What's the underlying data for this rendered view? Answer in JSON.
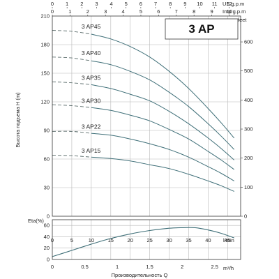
{
  "chart_data": [
    {
      "type": "line",
      "model": "3 AP",
      "ylabel": "Высота подъема H (m)",
      "right_axis_label": "feet",
      "top_axes": [
        {
          "label": "US g.p.m",
          "ticks": [
            "0",
            "1",
            "2",
            "3",
            "4",
            "5",
            "6",
            "7",
            "8",
            "9",
            "10",
            "11",
            "12"
          ]
        },
        {
          "label": "Imp g.p.m",
          "ticks": [
            "0",
            "1",
            "2",
            "3",
            "4",
            "5",
            "6",
            "7",
            "8",
            "9",
            "10"
          ]
        }
      ],
      "xlim": [
        0,
        2.9
      ],
      "ylim": [
        0,
        210
      ],
      "y_ticks": [
        "0",
        "30",
        "60",
        "90",
        "120",
        "150",
        "180",
        "210"
      ],
      "feet_ticks": [
        "0",
        "100",
        "200",
        "300",
        "400",
        "500",
        "600"
      ],
      "series": [
        {
          "name": "3 AP45",
          "x": [
            0,
            0.3,
            0.6,
            0.9,
            1.2,
            1.5,
            1.8,
            2.1,
            2.4,
            2.6,
            2.8
          ],
          "y": [
            195,
            194,
            191,
            186,
            178,
            167,
            152,
            134,
            113,
            98,
            82
          ]
        },
        {
          "name": "3 AP40",
          "x": [
            0,
            0.3,
            0.6,
            0.9,
            1.2,
            1.5,
            1.8,
            2.1,
            2.4,
            2.6,
            2.8
          ],
          "y": [
            167,
            166,
            163,
            159,
            152,
            143,
            130,
            115,
            97,
            84,
            70
          ]
        },
        {
          "name": "3 AP35",
          "x": [
            0,
            0.3,
            0.6,
            0.9,
            1.2,
            1.5,
            1.8,
            2.1,
            2.4,
            2.6,
            2.8
          ],
          "y": [
            141,
            140,
            138,
            134,
            128,
            121,
            110,
            97,
            82,
            71,
            59
          ]
        },
        {
          "name": "3 AP30",
          "x": [
            0,
            0.3,
            0.6,
            0.9,
            1.2,
            1.5,
            1.8,
            2.1,
            2.4,
            2.6,
            2.8
          ],
          "y": [
            117,
            116,
            114,
            111,
            106,
            100,
            91,
            81,
            68,
            59,
            49
          ]
        },
        {
          "name": "3 AP22",
          "x": [
            0,
            0.3,
            0.6,
            0.9,
            1.2,
            1.5,
            1.8,
            2.1,
            2.4,
            2.6,
            2.8
          ],
          "y": [
            89,
            89,
            87,
            85,
            81,
            76,
            70,
            62,
            52,
            45,
            37
          ]
        },
        {
          "name": "3 AP15",
          "x": [
            0,
            0.3,
            0.6,
            0.9,
            1.2,
            1.5,
            1.8,
            2.1,
            2.4,
            2.6,
            2.8
          ],
          "y": [
            64,
            63.5,
            62,
            60.5,
            58,
            54,
            50,
            44,
            37,
            32,
            26
          ]
        }
      ]
    },
    {
      "type": "line",
      "ylabel": "Eta(%)",
      "xlabel": "Производительность Q",
      "xlim": [
        0,
        2.9
      ],
      "ylim": [
        0,
        70
      ],
      "y_ticks": [
        "0",
        "20",
        "40",
        "60"
      ],
      "x_ticks_m3h": [
        "0",
        "0.5",
        "1",
        "1.5",
        "2",
        "2.5"
      ],
      "x_tick_values_m3h": [
        0,
        0.5,
        1,
        1.5,
        2,
        2.5
      ],
      "x_unit_m3h": "m³/h",
      "x_ticks_lmin": [
        "0",
        "5",
        "10",
        "15",
        "20",
        "25",
        "30",
        "35",
        "40",
        "45"
      ],
      "x_unit_lmin": "l/min",
      "series": [
        {
          "name": "",
          "x": [
            0,
            0.3,
            0.6,
            0.9,
            1.2,
            1.5,
            1.8,
            2.0,
            2.2,
            2.4,
            2.6,
            2.8
          ],
          "y": [
            5,
            16,
            27,
            37,
            45,
            51,
            55,
            56,
            56,
            52,
            46,
            38
          ]
        }
      ]
    }
  ]
}
